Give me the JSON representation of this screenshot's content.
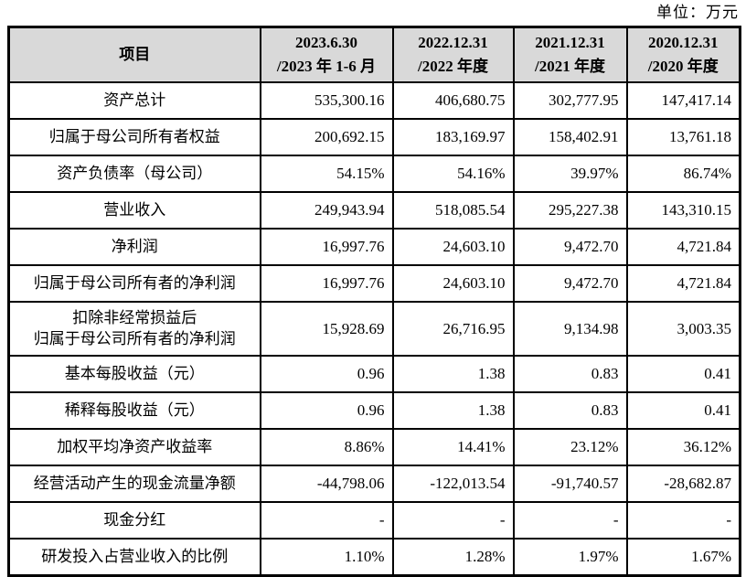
{
  "unit_label": "单位：万元",
  "colors": {
    "header_bg": "#d9d9d9",
    "border": "#000000",
    "text": "#000000"
  },
  "table": {
    "header": {
      "item_label": "项目",
      "periods": [
        {
          "line1": "2023.6.30",
          "line2": "/2023 年 1-6 月"
        },
        {
          "line1": "2022.12.31",
          "line2": "/2022 年度"
        },
        {
          "line1": "2021.12.31",
          "line2": "/2021 年度"
        },
        {
          "line1": "2020.12.31",
          "line2": "/2020 年度"
        }
      ]
    },
    "rows": [
      {
        "label_lines": [
          "资产总计"
        ],
        "values": [
          "535,300.16",
          "406,680.75",
          "302,777.95",
          "147,417.14"
        ]
      },
      {
        "label_lines": [
          "归属于母公司所有者权益"
        ],
        "values": [
          "200,692.15",
          "183,169.97",
          "158,402.91",
          "13,761.18"
        ]
      },
      {
        "label_lines": [
          "资产负债率（母公司）"
        ],
        "values": [
          "54.15%",
          "54.16%",
          "39.97%",
          "86.74%"
        ]
      },
      {
        "label_lines": [
          "营业收入"
        ],
        "values": [
          "249,943.94",
          "518,085.54",
          "295,227.38",
          "143,310.15"
        ]
      },
      {
        "label_lines": [
          "净利润"
        ],
        "values": [
          "16,997.76",
          "24,603.10",
          "9,472.70",
          "4,721.84"
        ]
      },
      {
        "label_lines": [
          "归属于母公司所有者的净利润"
        ],
        "values": [
          "16,997.76",
          "24,603.10",
          "9,472.70",
          "4,721.84"
        ]
      },
      {
        "label_lines": [
          "扣除非经常损益后",
          "归属于母公司所有者的净利润"
        ],
        "values": [
          "15,928.69",
          "26,716.95",
          "9,134.98",
          "3,003.35"
        ]
      },
      {
        "label_lines": [
          "基本每股收益（元）"
        ],
        "values": [
          "0.96",
          "1.38",
          "0.83",
          "0.41"
        ]
      },
      {
        "label_lines": [
          "稀释每股收益（元）"
        ],
        "values": [
          "0.96",
          "1.38",
          "0.83",
          "0.41"
        ]
      },
      {
        "label_lines": [
          "加权平均净资产收益率"
        ],
        "values": [
          "8.86%",
          "14.41%",
          "23.12%",
          "36.12%"
        ]
      },
      {
        "label_lines": [
          "经营活动产生的现金流量净额"
        ],
        "values": [
          "-44,798.06",
          "-122,013.54",
          "-91,740.57",
          "-28,682.87"
        ]
      },
      {
        "label_lines": [
          "现金分红"
        ],
        "values": [
          "-",
          "-",
          "-",
          "-"
        ]
      },
      {
        "label_lines": [
          "研发投入占营业收入的比例"
        ],
        "values": [
          "1.10%",
          "1.28%",
          "1.97%",
          "1.67%"
        ]
      }
    ]
  }
}
